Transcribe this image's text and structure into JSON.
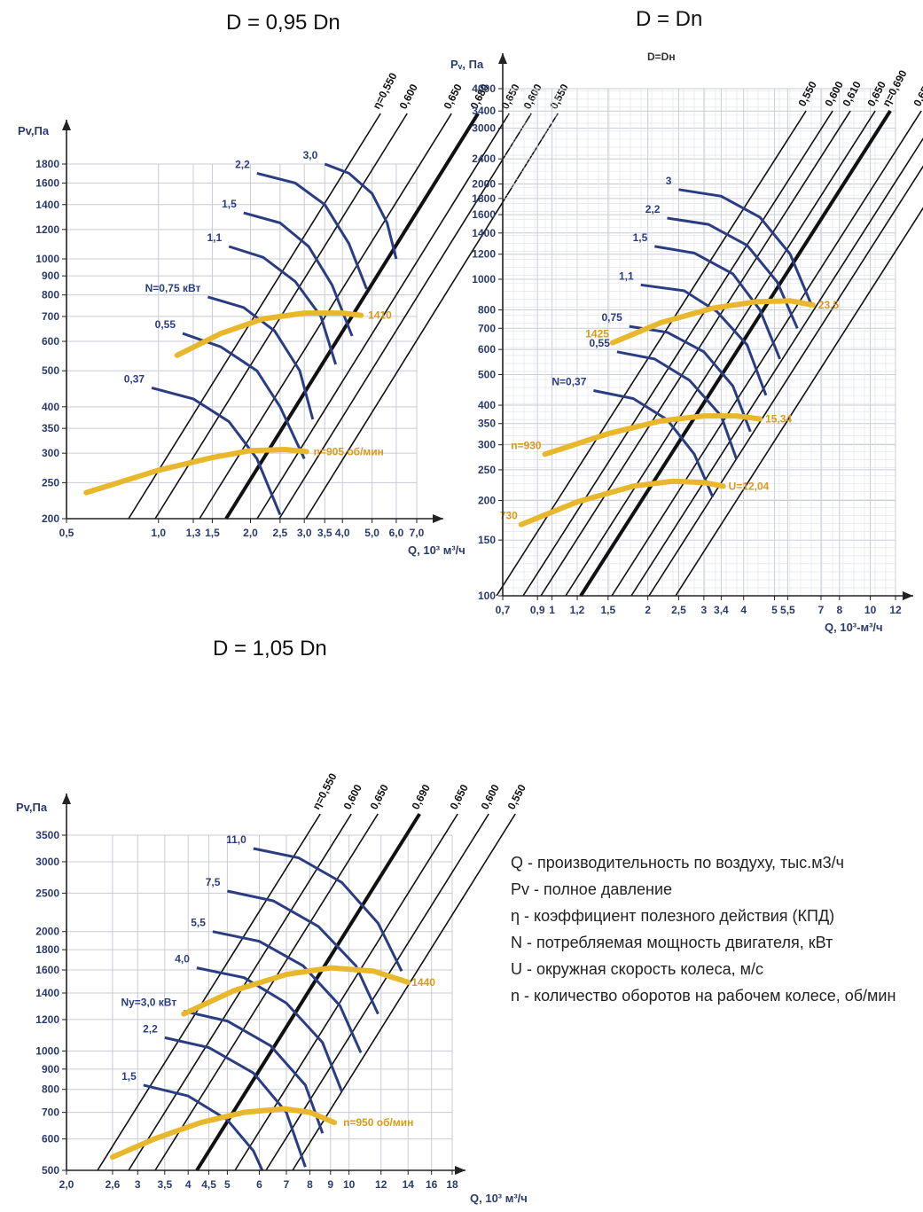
{
  "chart_data": [
    {
      "type": "line",
      "title": "D = 0,95 Dn",
      "xlabel": "Q, 10³ м³/ч",
      "ylabel": "Pv,Па",
      "x_scale": "log",
      "y_scale": "log",
      "xlim": [
        0.5,
        7.0
      ],
      "ylim": [
        200,
        1800
      ],
      "grid": true,
      "x_ticks": [
        "0,5",
        "1,0",
        "1,3",
        "1,5",
        "2,0",
        "2,5",
        "3,0",
        "3,5",
        "4,0",
        "5,0",
        "6,0",
        "7,0"
      ],
      "y_ticks": [
        "200",
        "250",
        "300",
        "350",
        "400",
        "500",
        "600",
        "700",
        "800",
        "900",
        "1000",
        "1200",
        "1400",
        "1600",
        "1800"
      ],
      "efficiency_labels": [
        "η=0,550",
        "0,600",
        "0,650",
        "0,680",
        "0,650",
        "0,600",
        "0,550"
      ],
      "power_series": [
        {
          "name": "0,37",
          "x": [
            0.95,
            1.3,
            1.7,
            2.1,
            2.5
          ],
          "y": [
            450,
            420,
            365,
            290,
            205
          ]
        },
        {
          "name": "0,55",
          "x": [
            1.2,
            1.6,
            2.1,
            2.5,
            3.0
          ],
          "y": [
            630,
            580,
            500,
            400,
            290
          ]
        },
        {
          "name": "N=0,75 кВт",
          "x": [
            1.45,
            1.9,
            2.4,
            2.9,
            3.2
          ],
          "y": [
            790,
            740,
            640,
            500,
            370
          ]
        },
        {
          "name": "1,1",
          "x": [
            1.7,
            2.2,
            2.8,
            3.4,
            3.8
          ],
          "y": [
            1080,
            1010,
            870,
            700,
            520
          ]
        },
        {
          "name": "1,5",
          "x": [
            1.9,
            2.5,
            3.1,
            3.7,
            4.3
          ],
          "y": [
            1330,
            1250,
            1080,
            850,
            620
          ]
        },
        {
          "name": "2,2",
          "x": [
            2.1,
            2.8,
            3.5,
            4.2,
            4.8
          ],
          "y": [
            1700,
            1600,
            1400,
            1100,
            830
          ]
        },
        {
          "name": "3,0",
          "x": [
            3.5,
            4.2,
            5.0,
            5.6,
            6.0
          ],
          "y": [
            1800,
            1700,
            1500,
            1250,
            1000
          ]
        }
      ],
      "speed_series": [
        {
          "name": "n=905 об/мин",
          "x": [
            0.58,
            1.0,
            1.5,
            2.0,
            2.6,
            3.05
          ],
          "y": [
            235,
            270,
            292,
            305,
            307,
            303
          ]
        },
        {
          "name": "1410",
          "x": [
            1.15,
            1.6,
            2.2,
            3.0,
            4.0,
            4.6
          ],
          "y": [
            550,
            630,
            690,
            715,
            715,
            705
          ]
        }
      ]
    },
    {
      "type": "line",
      "title": "D = Dn",
      "subtitle": "D=Dн",
      "xlabel": "Q, 10³-м³/ч",
      "ylabel": "Pᵥ, Па",
      "x_scale": "log",
      "y_scale": "log",
      "xlim": [
        0.7,
        12
      ],
      "ylim": [
        100,
        4000
      ],
      "grid": true,
      "x_ticks": [
        "0,7",
        "0,9",
        "1",
        "1,2",
        "1,5",
        "2",
        "2,5",
        "3",
        "3,4",
        "4",
        "5",
        "5,5",
        "7",
        "8",
        "10",
        "12"
      ],
      "y_ticks": [
        "100",
        "150",
        "200",
        "250",
        "300",
        "350",
        "400",
        "500",
        "600",
        "700",
        "800",
        "1000",
        "1200",
        "1400",
        "1600",
        "1800",
        "2000",
        "2400",
        "3000",
        "3400",
        "4000"
      ],
      "efficiency_labels": [
        "0,550",
        "0,600",
        "0,610",
        "0,650",
        "η=0,690",
        "0,650",
        "0,610",
        "0,600",
        "0,550"
      ],
      "power_series": [
        {
          "name": "N=0,37",
          "x": [
            1.35,
            1.8,
            2.3,
            2.8,
            3.2
          ],
          "y": [
            445,
            420,
            360,
            280,
            205
          ]
        },
        {
          "name": "0,55",
          "x": [
            1.6,
            2.1,
            2.7,
            3.4,
            3.8
          ],
          "y": [
            590,
            560,
            480,
            370,
            270
          ]
        },
        {
          "name": "0,75",
          "x": [
            1.75,
            2.3,
            3.0,
            3.7,
            4.2
          ],
          "y": [
            710,
            680,
            590,
            460,
            330
          ]
        },
        {
          "name": "1,1",
          "x": [
            1.9,
            2.6,
            3.3,
            4.1,
            4.7
          ],
          "y": [
            960,
            920,
            790,
            620,
            430
          ]
        },
        {
          "name": "1,5",
          "x": [
            2.1,
            2.8,
            3.7,
            4.5,
            5.2
          ],
          "y": [
            1270,
            1210,
            1040,
            800,
            560
          ]
        },
        {
          "name": "2,2",
          "x": [
            2.3,
            3.1,
            4.1,
            5.1,
            5.9
          ],
          "y": [
            1560,
            1490,
            1280,
            980,
            700
          ]
        },
        {
          "name": "3",
          "x": [
            2.5,
            3.4,
            4.5,
            5.6,
            6.5
          ],
          "y": [
            1920,
            1830,
            1570,
            1200,
            840
          ]
        }
      ],
      "speed_series": [
        {
          "name": "730",
          "x": [
            0.8,
            1.2,
            1.8,
            2.4,
            3.0,
            3.45
          ],
          "y": [
            168,
            198,
            222,
            230,
            228,
            222
          ]
        },
        {
          "name": "n=930",
          "x": [
            0.95,
            1.5,
            2.2,
            3.0,
            3.8,
            4.5
          ],
          "y": [
            280,
            325,
            357,
            370,
            370,
            362
          ]
        },
        {
          "name": "1425",
          "x": [
            1.55,
            2.2,
            3.2,
            4.4,
            5.6,
            6.6
          ],
          "y": [
            630,
            730,
            810,
            850,
            855,
            830
          ]
        }
      ],
      "speed_end_labels": [
        "U=12,04",
        "15,34",
        "23,5"
      ]
    },
    {
      "type": "line",
      "title": "D = 1,05 Dn",
      "xlabel": "Q, 10³ м³/ч",
      "ylabel": "Pv,Па",
      "x_scale": "log",
      "y_scale": "log",
      "xlim": [
        2.0,
        18
      ],
      "ylim": [
        500,
        3500
      ],
      "grid": true,
      "x_ticks": [
        "2,0",
        "2,6",
        "3",
        "3,5",
        "4",
        "4,5",
        "5",
        "6",
        "7",
        "8",
        "9",
        "10",
        "12",
        "14",
        "16",
        "18"
      ],
      "y_ticks": [
        "500",
        "600",
        "700",
        "800",
        "900",
        "1000",
        "1200",
        "1400",
        "1600",
        "1800",
        "2000",
        "2500",
        "3000",
        "3500"
      ],
      "efficiency_labels": [
        "η=0,550",
        "0,600",
        "0,650",
        "0,690",
        "0,650",
        "0,600",
        "0,550"
      ],
      "power_series": [
        {
          "name": "1,5",
          "x": [
            3.1,
            4.0,
            5.0,
            5.8,
            6.1
          ],
          "y": [
            820,
            770,
            670,
            560,
            500
          ]
        },
        {
          "name": "2,2",
          "x": [
            3.5,
            4.5,
            5.8,
            7.0,
            7.8
          ],
          "y": [
            1080,
            1020,
            880,
            700,
            510
          ]
        },
        {
          "name": "Nу=3,0 кВт",
          "x": [
            3.9,
            5.0,
            6.4,
            7.8,
            8.6
          ],
          "y": [
            1260,
            1190,
            1030,
            820,
            620
          ]
        },
        {
          "name": "4,0",
          "x": [
            4.2,
            5.5,
            7.0,
            8.6,
            9.6
          ],
          "y": [
            1620,
            1530,
            1320,
            1050,
            790
          ]
        },
        {
          "name": "5,5",
          "x": [
            4.6,
            6.0,
            7.7,
            9.5,
            10.7
          ],
          "y": [
            2000,
            1890,
            1640,
            1300,
            990
          ]
        },
        {
          "name": "7,5",
          "x": [
            5.0,
            6.5,
            8.4,
            10.4,
            11.8
          ],
          "y": [
            2530,
            2390,
            2060,
            1640,
            1240
          ]
        },
        {
          "name": "11,0",
          "x": [
            5.8,
            7.5,
            9.6,
            11.8,
            13.5
          ],
          "y": [
            3240,
            3070,
            2660,
            2100,
            1590
          ]
        }
      ],
      "speed_series": [
        {
          "name": "n=950 об/мин",
          "x": [
            2.6,
            3.3,
            4.3,
            5.5,
            6.9,
            8.0,
            9.2
          ],
          "y": [
            540,
            600,
            660,
            700,
            715,
            700,
            660
          ]
        },
        {
          "name": "Nу=3,0 кВт",
          "x": [
            3.9,
            5.2,
            7.0,
            9.0,
            11.5,
            14.0
          ],
          "y": [
            1240,
            1420,
            1560,
            1620,
            1590,
            1490
          ]
        }
      ],
      "speed_end_labels": [
        "1440"
      ]
    }
  ],
  "legend": [
    "Q - производительность по воздуху, тыс.м3/ч",
    "Pv - полное давление",
    "η - коэффициент полезного действия (КПД)",
    "N - потребляемая мощность двигателя, кВт",
    "U - окружная скорость колеса, м/с",
    "n - количество оборотов на рабочем колесе, об/мин"
  ],
  "colors": {
    "power_curve": "#2b3d82",
    "speed_curve": "#e8b72b",
    "speed_label": "#d99a1e",
    "efficiency_line": "#111111",
    "grid": "#c9ccd6",
    "axis": "#222222"
  }
}
